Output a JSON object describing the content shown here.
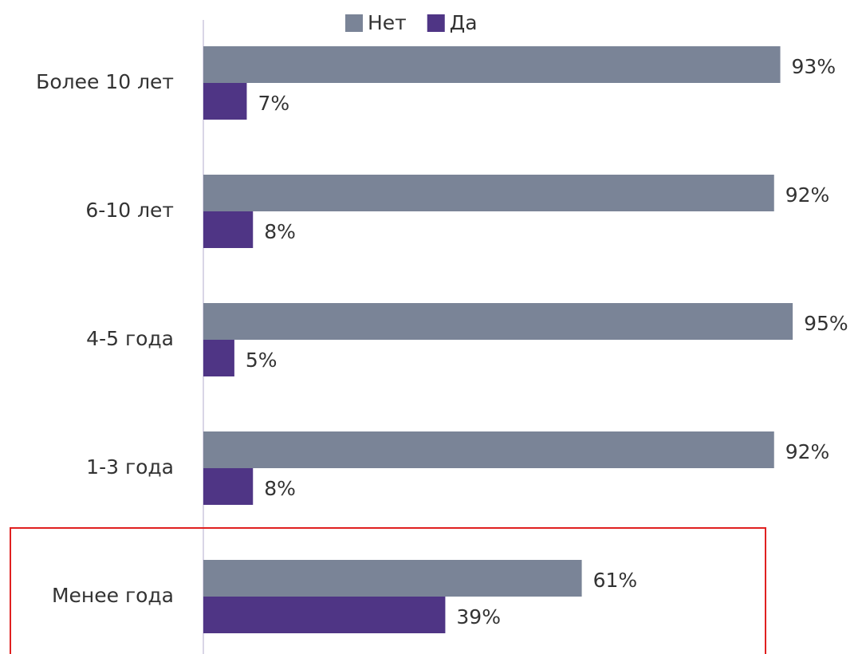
{
  "chart_data": {
    "type": "hbar",
    "categories": [
      "Более 10 лет",
      "6-10 лет",
      "4-5 года",
      "1-3 года",
      "Менее года"
    ],
    "series": [
      {
        "name": "Нет",
        "color": "#7a8497",
        "values": [
          93,
          92,
          95,
          92,
          61
        ],
        "value_labels": [
          "93%",
          "92%",
          "95%",
          "92%",
          "61%"
        ]
      },
      {
        "name": "Да",
        "color": "#4f3585",
        "values": [
          7,
          8,
          5,
          8,
          39
        ],
        "value_labels": [
          "7%",
          "8%",
          "5%",
          "8%",
          "39%"
        ]
      }
    ],
    "legend": "top"
  }
}
